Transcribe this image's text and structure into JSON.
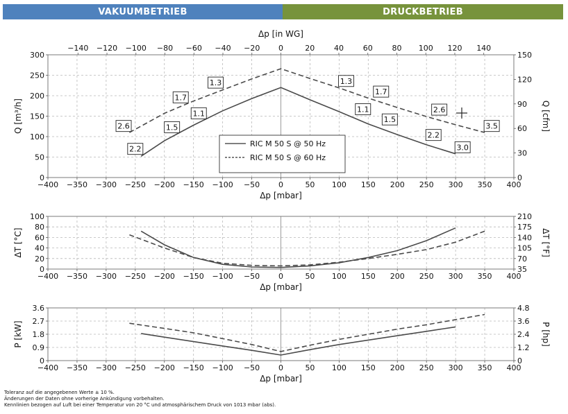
{
  "header": {
    "left_label": "VAKUUMBETRIEB",
    "right_label": "DRUCKBETRIEB",
    "left_color": "#4f82bd",
    "right_color": "#77933c"
  },
  "footnotes": [
    "Toleranz auf die angegebenen Werte ± 10 %.",
    "Änderungen der Daten ohne vorherige Ankündigung vorbehalten.",
    "Kennlinien bezogen auf Luft bei einer Temperatur von 20 °C und atmosphärischem Druck von 1013 mbar (abs)."
  ],
  "cursor_icon": "crosshair-icon",
  "chart_data": [
    {
      "id": "flow",
      "type": "line",
      "xlabel": "Δp [mbar]",
      "xlim": [
        -400,
        400
      ],
      "xticks": [
        -400,
        -350,
        -300,
        -250,
        -200,
        -150,
        -100,
        -50,
        0,
        50,
        100,
        150,
        200,
        250,
        300,
        350,
        400
      ],
      "x2label": "Δp [in WG]",
      "x2ticks": [
        -140,
        -120,
        -100,
        -80,
        -60,
        -40,
        -20,
        0,
        20,
        40,
        60,
        80,
        100,
        120,
        140
      ],
      "ylabel": "Q [m³/h]",
      "ylim": [
        0,
        300
      ],
      "yticks": [
        0,
        50,
        100,
        150,
        200,
        250,
        300
      ],
      "y2label": "Q [cfm]",
      "y2ticks": [
        0,
        30,
        60,
        90,
        120,
        150
      ],
      "grid": true,
      "legend": {
        "position": "center",
        "entries": [
          "RIC M 50 S @ 50 Hz",
          "RIC M 50 S @ 60 Hz"
        ]
      },
      "series": [
        {
          "name": "RIC M 50 S @ 50 Hz",
          "style": "solid",
          "x": [
            -240,
            -200,
            -150,
            -100,
            -50,
            0,
            50,
            100,
            150,
            200,
            250,
            300
          ],
          "y": [
            52,
            90,
            128,
            163,
            193,
            220,
            190,
            161,
            131,
            105,
            80,
            58
          ]
        },
        {
          "name": "RIC M 50 S @ 60 Hz",
          "style": "dashed",
          "x": [
            -260,
            -200,
            -150,
            -100,
            -50,
            0,
            50,
            100,
            150,
            200,
            250,
            300,
            350
          ],
          "y": [
            110,
            157,
            187,
            214,
            241,
            266,
            242,
            219,
            194,
            171,
            149,
            129,
            110
          ]
        }
      ],
      "annotations": [
        {
          "text": "2.2",
          "x": -250,
          "y": 70
        },
        {
          "text": "1.5",
          "x": -187,
          "y": 123
        },
        {
          "text": "1.1",
          "x": -141,
          "y": 157
        },
        {
          "text": "2.6",
          "x": -270,
          "y": 126
        },
        {
          "text": "1.7",
          "x": -172,
          "y": 196
        },
        {
          "text": "1.3",
          "x": -112,
          "y": 232
        },
        {
          "text": "1.3",
          "x": 112,
          "y": 236
        },
        {
          "text": "1.7",
          "x": 172,
          "y": 210
        },
        {
          "text": "2.6",
          "x": 272,
          "y": 166
        },
        {
          "text": "3.5",
          "x": 362,
          "y": 126
        },
        {
          "text": "1.1",
          "x": 141,
          "y": 167
        },
        {
          "text": "1.5",
          "x": 187,
          "y": 142
        },
        {
          "text": "2.2",
          "x": 262,
          "y": 104
        },
        {
          "text": "3.0",
          "x": 312,
          "y": 74
        }
      ]
    },
    {
      "id": "temperature",
      "type": "line",
      "xlabel": "Δp [mbar]",
      "xlim": [
        -400,
        400
      ],
      "xticks": [
        -400,
        -350,
        -300,
        -250,
        -200,
        -150,
        -100,
        -50,
        0,
        50,
        100,
        150,
        200,
        250,
        300,
        350,
        400
      ],
      "ylabel": "ΔT [°C]",
      "ylim": [
        0,
        100
      ],
      "yticks": [
        0,
        20,
        40,
        60,
        80,
        100
      ],
      "y2label": "ΔT [°F]",
      "y2ticks": [
        35,
        70,
        105,
        140,
        175,
        210
      ],
      "grid": true,
      "series": [
        {
          "name": "RIC M 50 S @ 50 Hz",
          "style": "solid",
          "x": [
            -240,
            -200,
            -150,
            -100,
            -50,
            0,
            50,
            100,
            150,
            200,
            250,
            300
          ],
          "y": [
            72,
            46,
            22,
            9,
            4,
            3,
            6,
            12,
            22,
            35,
            54,
            78
          ]
        },
        {
          "name": "RIC M 50 S @ 60 Hz",
          "style": "dashed",
          "x": [
            -260,
            -200,
            -150,
            -100,
            -50,
            0,
            50,
            100,
            150,
            200,
            250,
            300,
            350
          ],
          "y": [
            65,
            40,
            22,
            11,
            7,
            6,
            8,
            13,
            20,
            28,
            37,
            51,
            72
          ]
        }
      ]
    },
    {
      "id": "power",
      "type": "line",
      "xlabel": "Δp [mbar]",
      "xlim": [
        -400,
        400
      ],
      "xticks": [
        -400,
        -350,
        -300,
        -250,
        -200,
        -150,
        -100,
        -50,
        0,
        50,
        100,
        150,
        200,
        250,
        300,
        350,
        400
      ],
      "ylabel": "P [kW]",
      "ylim": [
        0,
        3.6
      ],
      "yticks": [
        0,
        0.9,
        1.8,
        2.7,
        3.6
      ],
      "ytick_labels": [
        "0",
        "0.9",
        "1.8",
        "2.7",
        "3.6"
      ],
      "y2label": "P [hp]",
      "y2ticks": [
        0,
        1.2,
        2.4,
        3.6,
        4.8
      ],
      "y2tick_labels": [
        "0",
        "1.2",
        "2.4",
        "3.6",
        "4.8"
      ],
      "grid": true,
      "series": [
        {
          "name": "RIC M 50 S @ 50 Hz",
          "style": "solid",
          "x": [
            -240,
            -200,
            -150,
            -100,
            -50,
            0,
            50,
            100,
            150,
            200,
            250,
            300
          ],
          "y": [
            1.85,
            1.6,
            1.3,
            1.0,
            0.7,
            0.38,
            0.75,
            1.1,
            1.4,
            1.7,
            2.0,
            2.3
          ]
        },
        {
          "name": "RIC M 50 S @ 60 Hz",
          "style": "dashed",
          "x": [
            -260,
            -200,
            -150,
            -100,
            -50,
            0,
            50,
            100,
            150,
            200,
            250,
            300,
            350
          ],
          "y": [
            2.55,
            2.2,
            1.9,
            1.5,
            1.1,
            0.62,
            1.05,
            1.45,
            1.8,
            2.15,
            2.45,
            2.8,
            3.15
          ]
        }
      ]
    }
  ]
}
